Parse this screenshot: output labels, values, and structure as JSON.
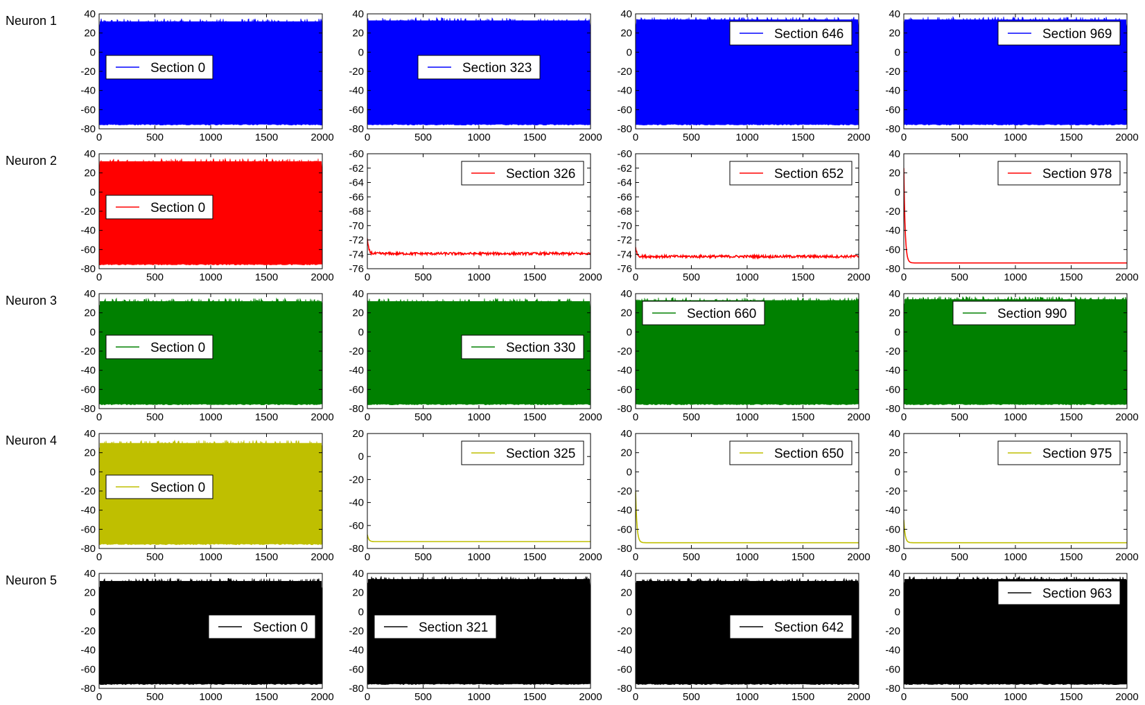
{
  "figure": {
    "row_labels": [
      "Neuron 1",
      "Neuron 2",
      "Neuron 3",
      "Neuron 4",
      "Neuron 5"
    ]
  },
  "chart_data": [
    {
      "type": "line",
      "row_label": "Neuron 1",
      "legend": "Section 0",
      "color": "#0000ff",
      "pattern": "spiking",
      "xlim": [
        0,
        2000
      ],
      "ylim": [
        -80,
        40
      ],
      "xticks": [
        0,
        500,
        1000,
        1500,
        2000
      ],
      "yticks": [
        -80,
        -60,
        -40,
        -20,
        0,
        20,
        40
      ],
      "spike_peak": [
        22,
        35
      ],
      "spike_trough": -75,
      "legend_loc": "center-left"
    },
    {
      "type": "line",
      "row_label": "Neuron 1",
      "legend": "Section 323",
      "color": "#0000ff",
      "pattern": "spiking",
      "xlim": [
        0,
        2000
      ],
      "ylim": [
        -80,
        40
      ],
      "xticks": [
        0,
        500,
        1000,
        1500,
        2000
      ],
      "yticks": [
        -80,
        -60,
        -40,
        -20,
        0,
        20,
        40
      ],
      "spike_peak": [
        22,
        36
      ],
      "spike_trough": -75,
      "legend_loc": "center"
    },
    {
      "type": "line",
      "row_label": "Neuron 1",
      "legend": "Section 646",
      "color": "#0000ff",
      "pattern": "spiking",
      "xlim": [
        0,
        2000
      ],
      "ylim": [
        -80,
        40
      ],
      "xticks": [
        0,
        500,
        1000,
        1500,
        2000
      ],
      "yticks": [
        -80,
        -60,
        -40,
        -20,
        0,
        20,
        40
      ],
      "spike_peak": [
        24,
        37
      ],
      "spike_trough": -75,
      "legend_loc": "upper-right"
    },
    {
      "type": "line",
      "row_label": "Neuron 1",
      "legend": "Section 969",
      "color": "#0000ff",
      "pattern": "spiking",
      "xlim": [
        0,
        2000
      ],
      "ylim": [
        -80,
        40
      ],
      "xticks": [
        0,
        500,
        1000,
        1500,
        2000
      ],
      "yticks": [
        -80,
        -60,
        -40,
        -20,
        0,
        20,
        40
      ],
      "spike_peak": [
        24,
        37
      ],
      "spike_trough": -75,
      "legend_loc": "upper-right"
    },
    {
      "type": "line",
      "row_label": "Neuron 2",
      "legend": "Section 0",
      "color": "#ff0000",
      "pattern": "spiking",
      "xlim": [
        0,
        2000
      ],
      "ylim": [
        -80,
        40
      ],
      "xticks": [
        0,
        500,
        1000,
        1500,
        2000
      ],
      "yticks": [
        -80,
        -60,
        -40,
        -20,
        0,
        20,
        40
      ],
      "spike_peak": [
        22,
        35
      ],
      "spike_trough": -75,
      "legend_loc": "center-left"
    },
    {
      "type": "line",
      "row_label": "Neuron 2",
      "legend": "Section 326",
      "color": "#ff0000",
      "pattern": "resting",
      "xlim": [
        0,
        2000
      ],
      "ylim": [
        -76,
        -60
      ],
      "xticks": [
        0,
        500,
        1000,
        1500,
        2000
      ],
      "yticks": [
        -76,
        -74,
        -72,
        -70,
        -68,
        -66,
        -64,
        -62,
        -60
      ],
      "rest_value": -73.9,
      "initial_value": -71.8,
      "legend_loc": "upper-right"
    },
    {
      "type": "line",
      "row_label": "Neuron 2",
      "legend": "Section 652",
      "color": "#ff0000",
      "pattern": "resting",
      "xlim": [
        0,
        2000
      ],
      "ylim": [
        -76,
        -60
      ],
      "xticks": [
        0,
        500,
        1000,
        1500,
        2000
      ],
      "yticks": [
        -76,
        -74,
        -72,
        -70,
        -68,
        -66,
        -64,
        -62,
        -60
      ],
      "rest_value": -74.3,
      "initial_value": -73.0,
      "legend_loc": "upper-right"
    },
    {
      "type": "line",
      "row_label": "Neuron 2",
      "legend": "Section 978",
      "color": "#ff0000",
      "pattern": "resting",
      "xlim": [
        0,
        2000
      ],
      "ylim": [
        -80,
        40
      ],
      "xticks": [
        0,
        500,
        1000,
        1500,
        2000
      ],
      "yticks": [
        -80,
        -60,
        -40,
        -20,
        0,
        20,
        40
      ],
      "rest_value": -74,
      "initial_value": 25,
      "legend_loc": "upper-right"
    },
    {
      "type": "line",
      "row_label": "Neuron 3",
      "legend": "Section 0",
      "color": "#008000",
      "pattern": "spiking",
      "xlim": [
        0,
        2000
      ],
      "ylim": [
        -80,
        40
      ],
      "xticks": [
        0,
        500,
        1000,
        1500,
        2000
      ],
      "yticks": [
        -80,
        -60,
        -40,
        -20,
        0,
        20,
        40
      ],
      "spike_peak": [
        22,
        35
      ],
      "spike_trough": -75,
      "legend_loc": "center-left"
    },
    {
      "type": "line",
      "row_label": "Neuron 3",
      "legend": "Section 330",
      "color": "#008000",
      "pattern": "spiking",
      "xlim": [
        0,
        2000
      ],
      "ylim": [
        -80,
        40
      ],
      "xticks": [
        0,
        500,
        1000,
        1500,
        2000
      ],
      "yticks": [
        -80,
        -60,
        -40,
        -20,
        0,
        20,
        40
      ],
      "spike_peak": [
        22,
        35
      ],
      "spike_trough": -75,
      "legend_loc": "center-right"
    },
    {
      "type": "line",
      "row_label": "Neuron 3",
      "legend": "Section 660",
      "color": "#008000",
      "pattern": "spiking",
      "xlim": [
        0,
        2000
      ],
      "ylim": [
        -80,
        40
      ],
      "xticks": [
        0,
        500,
        1000,
        1500,
        2000
      ],
      "yticks": [
        -80,
        -60,
        -40,
        -20,
        0,
        20,
        40
      ],
      "spike_peak": [
        24,
        36
      ],
      "spike_trough": -75,
      "legend_loc": "upper-left"
    },
    {
      "type": "line",
      "row_label": "Neuron 3",
      "legend": "Section 990",
      "color": "#008000",
      "pattern": "spiking",
      "xlim": [
        0,
        2000
      ],
      "ylim": [
        -80,
        40
      ],
      "xticks": [
        0,
        500,
        1000,
        1500,
        2000
      ],
      "yticks": [
        -80,
        -60,
        -40,
        -20,
        0,
        20,
        40
      ],
      "spike_peak": [
        28,
        37
      ],
      "spike_trough": -75,
      "legend_loc": "upper-center"
    },
    {
      "type": "line",
      "row_label": "Neuron 4",
      "legend": "Section 0",
      "color": "#bfbf00",
      "pattern": "spiking",
      "xlim": [
        0,
        2000
      ],
      "ylim": [
        -80,
        40
      ],
      "xticks": [
        0,
        500,
        1000,
        1500,
        2000
      ],
      "yticks": [
        -80,
        -60,
        -40,
        -20,
        0,
        20,
        40
      ],
      "spike_peak": [
        20,
        33
      ],
      "spike_trough": -75,
      "legend_loc": "center-left"
    },
    {
      "type": "line",
      "row_label": "Neuron 4",
      "legend": "Section 325",
      "color": "#bfbf00",
      "pattern": "resting",
      "xlim": [
        0,
        2000
      ],
      "ylim": [
        -80,
        20
      ],
      "xticks": [
        0,
        500,
        1000,
        1500,
        2000
      ],
      "yticks": [
        -80,
        -60,
        -40,
        -20,
        0,
        20
      ],
      "rest_value": -74,
      "initial_value": -68,
      "legend_loc": "upper-right"
    },
    {
      "type": "line",
      "row_label": "Neuron 4",
      "legend": "Section 650",
      "color": "#bfbf00",
      "pattern": "resting",
      "xlim": [
        0,
        2000
      ],
      "ylim": [
        -80,
        40
      ],
      "xticks": [
        0,
        500,
        1000,
        1500,
        2000
      ],
      "yticks": [
        -80,
        -60,
        -40,
        -20,
        0,
        20,
        40
      ],
      "rest_value": -74,
      "initial_value": -20,
      "legend_loc": "upper-right"
    },
    {
      "type": "line",
      "row_label": "Neuron 4",
      "legend": "Section 975",
      "color": "#bfbf00",
      "pattern": "resting",
      "xlim": [
        0,
        2000
      ],
      "ylim": [
        -80,
        40
      ],
      "xticks": [
        0,
        500,
        1000,
        1500,
        2000
      ],
      "yticks": [
        -80,
        -60,
        -40,
        -20,
        0,
        20,
        40
      ],
      "rest_value": -74,
      "initial_value": -50,
      "legend_loc": "upper-right"
    },
    {
      "type": "line",
      "row_label": "Neuron 5",
      "legend": "Section 0",
      "color": "#000000",
      "pattern": "spiking",
      "xlim": [
        0,
        2000
      ],
      "ylim": [
        -80,
        40
      ],
      "xticks": [
        0,
        500,
        1000,
        1500,
        2000
      ],
      "yticks": [
        -80,
        -60,
        -40,
        -20,
        0,
        20,
        40
      ],
      "spike_peak": [
        22,
        35
      ],
      "spike_trough": -75,
      "legend_loc": "center-right"
    },
    {
      "type": "line",
      "row_label": "Neuron 5",
      "legend": "Section 321",
      "color": "#000000",
      "pattern": "spiking",
      "xlim": [
        0,
        2000
      ],
      "ylim": [
        -80,
        40
      ],
      "xticks": [
        0,
        500,
        1000,
        1500,
        2000
      ],
      "yticks": [
        -80,
        -60,
        -40,
        -20,
        0,
        20,
        40
      ],
      "spike_peak": [
        22,
        37
      ],
      "spike_trough": -75,
      "legend_loc": "center-left"
    },
    {
      "type": "line",
      "row_label": "Neuron 5",
      "legend": "Section 642",
      "color": "#000000",
      "pattern": "spiking",
      "xlim": [
        0,
        2000
      ],
      "ylim": [
        -80,
        40
      ],
      "xticks": [
        0,
        500,
        1000,
        1500,
        2000
      ],
      "yticks": [
        -80,
        -60,
        -40,
        -20,
        0,
        20,
        40
      ],
      "spike_peak": [
        26,
        35
      ],
      "spike_trough": -75,
      "legend_loc": "center-right"
    },
    {
      "type": "line",
      "row_label": "Neuron 5",
      "legend": "Section 963",
      "color": "#000000",
      "pattern": "spiking",
      "xlim": [
        0,
        2000
      ],
      "ylim": [
        -80,
        40
      ],
      "xticks": [
        0,
        500,
        1000,
        1500,
        2000
      ],
      "yticks": [
        -80,
        -60,
        -40,
        -20,
        0,
        20,
        40
      ],
      "spike_peak": [
        26,
        37
      ],
      "spike_trough": -75,
      "legend_loc": "upper-right"
    }
  ]
}
